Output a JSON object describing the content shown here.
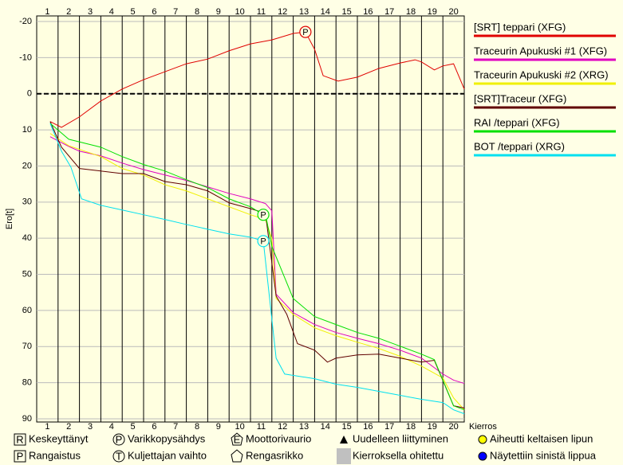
{
  "chart_data": {
    "type": "line",
    "ylabel": "Ero[t]",
    "xlabel": "Kierros",
    "xlim": [
      0.5,
      20.5
    ],
    "xticks": [
      1,
      2,
      3,
      4,
      5,
      6,
      7,
      8,
      9,
      10,
      11,
      12,
      13,
      14,
      15,
      16,
      17,
      18,
      19,
      20
    ],
    "ylim": [
      -20,
      90
    ],
    "yticks": [
      -20,
      -10,
      0,
      10,
      20,
      30,
      40,
      50,
      60,
      70,
      80,
      90
    ],
    "y_inverted": true,
    "grid": true,
    "zero_line": true,
    "legend": "right",
    "pit_symbol": "P",
    "series": [
      {
        "name": "[SRT] teppari (XFG)",
        "color": "#e00000",
        "x": [
          1.13,
          1.66,
          2.5,
          3.5,
          4.5,
          5.5,
          6.5,
          7.5,
          8.5,
          9.5,
          10.5,
          11.5,
          12.5,
          13.07,
          13.5,
          13.9,
          14.6,
          15.5,
          16.5,
          17.5,
          18.2,
          18.5,
          19.1,
          19.5,
          20,
          20.5
        ],
        "values": [
          7.7,
          9.3,
          6.4,
          2,
          -1.3,
          -3.9,
          -6.1,
          -8.3,
          -9.6,
          -11.9,
          -13.8,
          -14.9,
          -16.7,
          -17.1,
          -12.3,
          -5,
          -3.5,
          -4.6,
          -7,
          -8.5,
          -9.4,
          -8.8,
          -6.6,
          -7.7,
          -8.3,
          -1.3
        ],
        "pit": 13
      },
      {
        "name": "Traceurin Apukuski #1 (XFG)",
        "color": "#e000c0",
        "x": [
          1.13,
          2,
          2.5,
          3.5,
          4.5,
          5.5,
          6.5,
          7.5,
          8.5,
          9.5,
          10.5,
          11.2,
          11.5,
          11.7,
          12.5,
          13.5,
          14.5,
          15.5,
          16.5,
          17.5,
          18.5,
          19.5,
          20,
          20.5
        ],
        "values": [
          11.9,
          14.6,
          15.9,
          17.2,
          19.2,
          21,
          22.5,
          24,
          25.8,
          27.6,
          29.1,
          30.4,
          32.4,
          55.5,
          60.6,
          63.9,
          66.1,
          67.7,
          69.2,
          71,
          73.2,
          77.6,
          79.3,
          80.2
        ]
      },
      {
        "name": "Traceurin Apukuski #2 (XRG)",
        "color": "#f0f000",
        "x": [
          1.13,
          2,
          3.5,
          4.5,
          5.5,
          6.5,
          7.5,
          8.5,
          9.5,
          10.5,
          11.2,
          11.5,
          11.7,
          12.5,
          13.5,
          14.5,
          15.5,
          16.5,
          17.5,
          18.5,
          19.5,
          20,
          20.5
        ],
        "values": [
          11,
          14.4,
          17.4,
          20.7,
          22.5,
          25.2,
          26.9,
          29.1,
          31.3,
          33.5,
          34.8,
          40.1,
          56.7,
          61.1,
          64.8,
          67,
          68.8,
          70.5,
          72.7,
          75.4,
          78.7,
          84.2,
          87.5
        ]
      },
      {
        "name": "[SRT]Traceur (XFG)",
        "color": "#600000",
        "x": [
          1.13,
          1.66,
          2.5,
          3.5,
          4.5,
          5.5,
          6.5,
          7.5,
          8.5,
          9.5,
          10.5,
          11.2,
          11.7,
          12.2,
          12.7,
          13.5,
          14.1,
          14.5,
          15.5,
          16.5,
          17.5,
          18.5,
          19.1,
          20,
          20.5
        ],
        "values": [
          7.7,
          14.8,
          20.7,
          21.4,
          22.1,
          22.1,
          24.3,
          25.2,
          26.9,
          30.2,
          31.8,
          33.1,
          56,
          61.1,
          69.2,
          71,
          74.3,
          73.2,
          72.3,
          72.1,
          73.2,
          74.3,
          73.8,
          86.4,
          87
        ]
      },
      {
        "name": "RAI /teppari (XFG)",
        "color": "#00e000",
        "x": [
          1.13,
          2,
          3.5,
          4.5,
          5.5,
          6.5,
          7.5,
          8.5,
          9.5,
          10.5,
          11.1,
          11.2,
          11.5,
          12.5,
          13.5,
          14.5,
          15.5,
          16.5,
          17.5,
          18.5,
          19.1,
          20,
          20.5
        ],
        "values": [
          8.2,
          12.6,
          14.8,
          17.4,
          19.6,
          21.4,
          23.8,
          26,
          29.1,
          31.3,
          33.5,
          33.3,
          42.3,
          56.7,
          61.7,
          63.9,
          66.1,
          67.7,
          69.9,
          72.1,
          73.6,
          86.4,
          87.5
        ],
        "pit": 10
      },
      {
        "name": "BOT /teppari (XRG)",
        "color": "#00e0f0",
        "x": [
          1.13,
          1.66,
          2.1,
          2.6,
          3.5,
          4.5,
          5.5,
          6.5,
          7.5,
          8.5,
          9.5,
          10.5,
          11.1,
          11.7,
          12.1,
          13.5,
          14.5,
          15.5,
          16.5,
          17.5,
          18.5,
          19.5,
          20,
          20.5
        ],
        "values": [
          8.2,
          15.9,
          20.3,
          29.1,
          30.9,
          32.2,
          33.5,
          34.8,
          36.2,
          37.5,
          38.8,
          39.7,
          40.8,
          73.2,
          77.6,
          78.9,
          80.4,
          81.3,
          82.4,
          83.5,
          84.6,
          85.5,
          87.5,
          88.6
        ],
        "pit": 12
      }
    ]
  },
  "symbol_legend": [
    {
      "symbol": "R",
      "label": "Keskeyttänyt"
    },
    {
      "symbol": "P",
      "label": "Rangaistus"
    },
    {
      "symbol": "P",
      "label": "Varikkopysähdys"
    },
    {
      "symbol": "T",
      "label": "Kuljettajan vaihto"
    },
    {
      "symbol": "E",
      "label": "Moottorivaurio"
    },
    {
      "label": "Rengasrikko"
    },
    {
      "label": "Uudelleen liittyminen"
    },
    {
      "label": "Kierroksella ohitettu"
    },
    {
      "label": "Aiheutti keltaisen lipun"
    },
    {
      "label": "Näytettiin sinistä lippua"
    }
  ]
}
